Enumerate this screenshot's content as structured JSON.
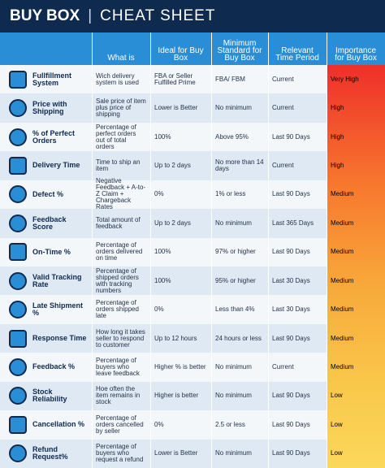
{
  "header": {
    "title": "BUY BOX",
    "subtitle": "CHEAT SHEET"
  },
  "table": {
    "columns": [
      "What is",
      "Ideal for Buy Box",
      "Minimum Standard for Buy Box",
      "Relevant Time Period",
      "Importance for Buy Box"
    ],
    "rows": [
      [
        "Fullfillment System",
        "Wich delivery system is used",
        "FBA or Seller Fulfilled Prime",
        "FBA/ FBM",
        "Current",
        "Very High"
      ],
      [
        "Price with Shipping",
        "Sale price of item plus price of shipping",
        "Lower is Better",
        "No minimum",
        "Current",
        "High"
      ],
      [
        "% of Perfect Orders",
        "Percentage of perfect orders out of total orders",
        "100%",
        "Above 95%",
        "Last 90 Days",
        "High"
      ],
      [
        "Delivery Time",
        "Time to ship an item",
        "Up to 2 days",
        "No more than 14 days",
        "Current",
        "High"
      ],
      [
        "Defect %",
        "Negative Feedback + A-to-Z Claim + Chargeback Rates",
        "0%",
        "1% or less",
        "Last 90 Days",
        "Medium"
      ],
      [
        "Feedback Score",
        "Total amount of feedback",
        "Up to 2 days",
        "No minimum",
        "Last 365 Days",
        "Medium"
      ],
      [
        "On-Time %",
        "Percentage of orders delivered on time",
        "100%",
        "97% or higher",
        "Last 90 Days",
        "Medium"
      ],
      [
        "Valid Tracking Rate",
        "Percentage of shipped orders with tracking numbers",
        "100%",
        "95% or higher",
        "Last 30 Days",
        "Medium"
      ],
      [
        "Late Shipment %",
        "Percentage of orders shipped late",
        "0%",
        "Less than 4%",
        "Last 30 Days",
        "Medium"
      ],
      [
        "Response Time",
        "How long it takes seller to respond to customer",
        "Up to 12 hours",
        "24 hours or less",
        "Last 90 Days",
        "Medium"
      ],
      [
        "Feedback %",
        "Percentage of buyers who leave feedback",
        "Higher % is better",
        "No minimum",
        "Current",
        "Medium"
      ],
      [
        "Stock Reliability",
        "Hoe often the item remains in stock",
        "Higher is better",
        "No minimum",
        "Last 90 Days",
        "Low"
      ],
      [
        "Cancellation %",
        "Percentage of orders cancelled by seller",
        "0%",
        "2.5 or less",
        "Last 90 Days",
        "Low"
      ],
      [
        "Refund Request%",
        "Percentage of buyers who request a refund",
        "Lower is Better",
        "No minimum",
        "Last 90 Days",
        "Low"
      ]
    ]
  }
}
